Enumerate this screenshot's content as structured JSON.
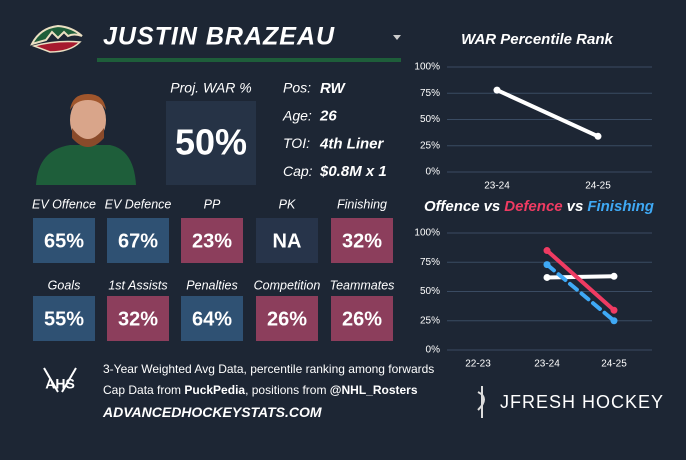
{
  "header": {
    "name": "JUSTIN BRAZEAU"
  },
  "proj_war": {
    "label": "Proj. WAR %",
    "value": "50%"
  },
  "bio": [
    {
      "label": "Pos:",
      "value": "RW"
    },
    {
      "label": "Age:",
      "value": "26"
    },
    {
      "label": "TOI:",
      "value": "4th Liner"
    },
    {
      "label": "Cap:",
      "value": "$0.8M x 1"
    }
  ],
  "tiles": [
    [
      {
        "label": "EV Offence",
        "value": "65%",
        "color": "#2f5173"
      },
      {
        "label": "EV Defence",
        "value": "67%",
        "color": "#2f5173"
      },
      {
        "label": "PP",
        "value": "23%",
        "color": "#8c3e5c"
      },
      {
        "label": "PK",
        "value": "NA",
        "color": "#27344a"
      },
      {
        "label": "Finishing",
        "value": "32%",
        "color": "#8c3e5c"
      }
    ],
    [
      {
        "label": "Goals",
        "value": "55%",
        "color": "#2f5173"
      },
      {
        "label": "1st Assists",
        "value": "32%",
        "color": "#8c3e5c"
      },
      {
        "label": "Penalties",
        "value": "64%",
        "color": "#2f5173"
      },
      {
        "label": "Competition",
        "value": "26%",
        "color": "#8c3e5c"
      },
      {
        "label": "Teammates",
        "value": "26%",
        "color": "#8c3e5c"
      }
    ]
  ],
  "footer": {
    "logo": "AHS",
    "note": "3-Year Weighted Avg Data, percentile ranking among forwards",
    "cap_note": [
      {
        "text": "Cap Data from "
      },
      {
        "text": "PuckPedia",
        "bold": true
      },
      {
        "text": ", positions from "
      },
      {
        "text": "@NHL_Rosters",
        "bold": true
      }
    ],
    "site": "ADVANCEDHOCKEYSTATS.COM",
    "brand": "JFRESH HOCKEY"
  },
  "chart_data": [
    {
      "type": "line",
      "title": [
        {
          "text": "WAR Percentile Rank",
          "color": "#ffffff"
        }
      ],
      "categories": [
        "23-24",
        "24-25"
      ],
      "series": [
        {
          "color": "#ffffff",
          "values": [
            78,
            34
          ]
        }
      ],
      "ylim": [
        0,
        100
      ],
      "yticks": [
        {
          "value": 0,
          "label": "0%"
        },
        {
          "value": 25,
          "label": "25%"
        },
        {
          "value": 50,
          "label": "50%"
        },
        {
          "value": 75,
          "label": "75%"
        },
        {
          "value": 100,
          "label": "100%"
        }
      ],
      "grid": true
    },
    {
      "type": "line",
      "title": [
        {
          "text": "Offence",
          "color": "#ffffff"
        },
        {
          "text": "vs",
          "color": "#ffffff"
        },
        {
          "text": "Defence",
          "color": "#ef3b62"
        },
        {
          "text": "vs",
          "color": "#ffffff"
        },
        {
          "text": "Finishing",
          "color": "#3fa9f5"
        }
      ],
      "categories": [
        "22-23",
        "23-24",
        "24-25"
      ],
      "series": [
        {
          "name": "Offence",
          "color": "#ffffff",
          "values": [
            null,
            62,
            63
          ]
        },
        {
          "name": "Defence",
          "color": "#ef3b62",
          "values": [
            null,
            85,
            34
          ]
        },
        {
          "name": "Finishing",
          "color": "#3fa9f5",
          "values": [
            null,
            73,
            25
          ],
          "dashed": true
        }
      ],
      "ylim": [
        0,
        100
      ],
      "yticks": [
        {
          "value": 0,
          "label": "0%"
        },
        {
          "value": 25,
          "label": "25%"
        },
        {
          "value": 50,
          "label": "50%"
        },
        {
          "value": 75,
          "label": "75%"
        },
        {
          "value": 100,
          "label": "100%"
        }
      ],
      "grid": true
    }
  ]
}
